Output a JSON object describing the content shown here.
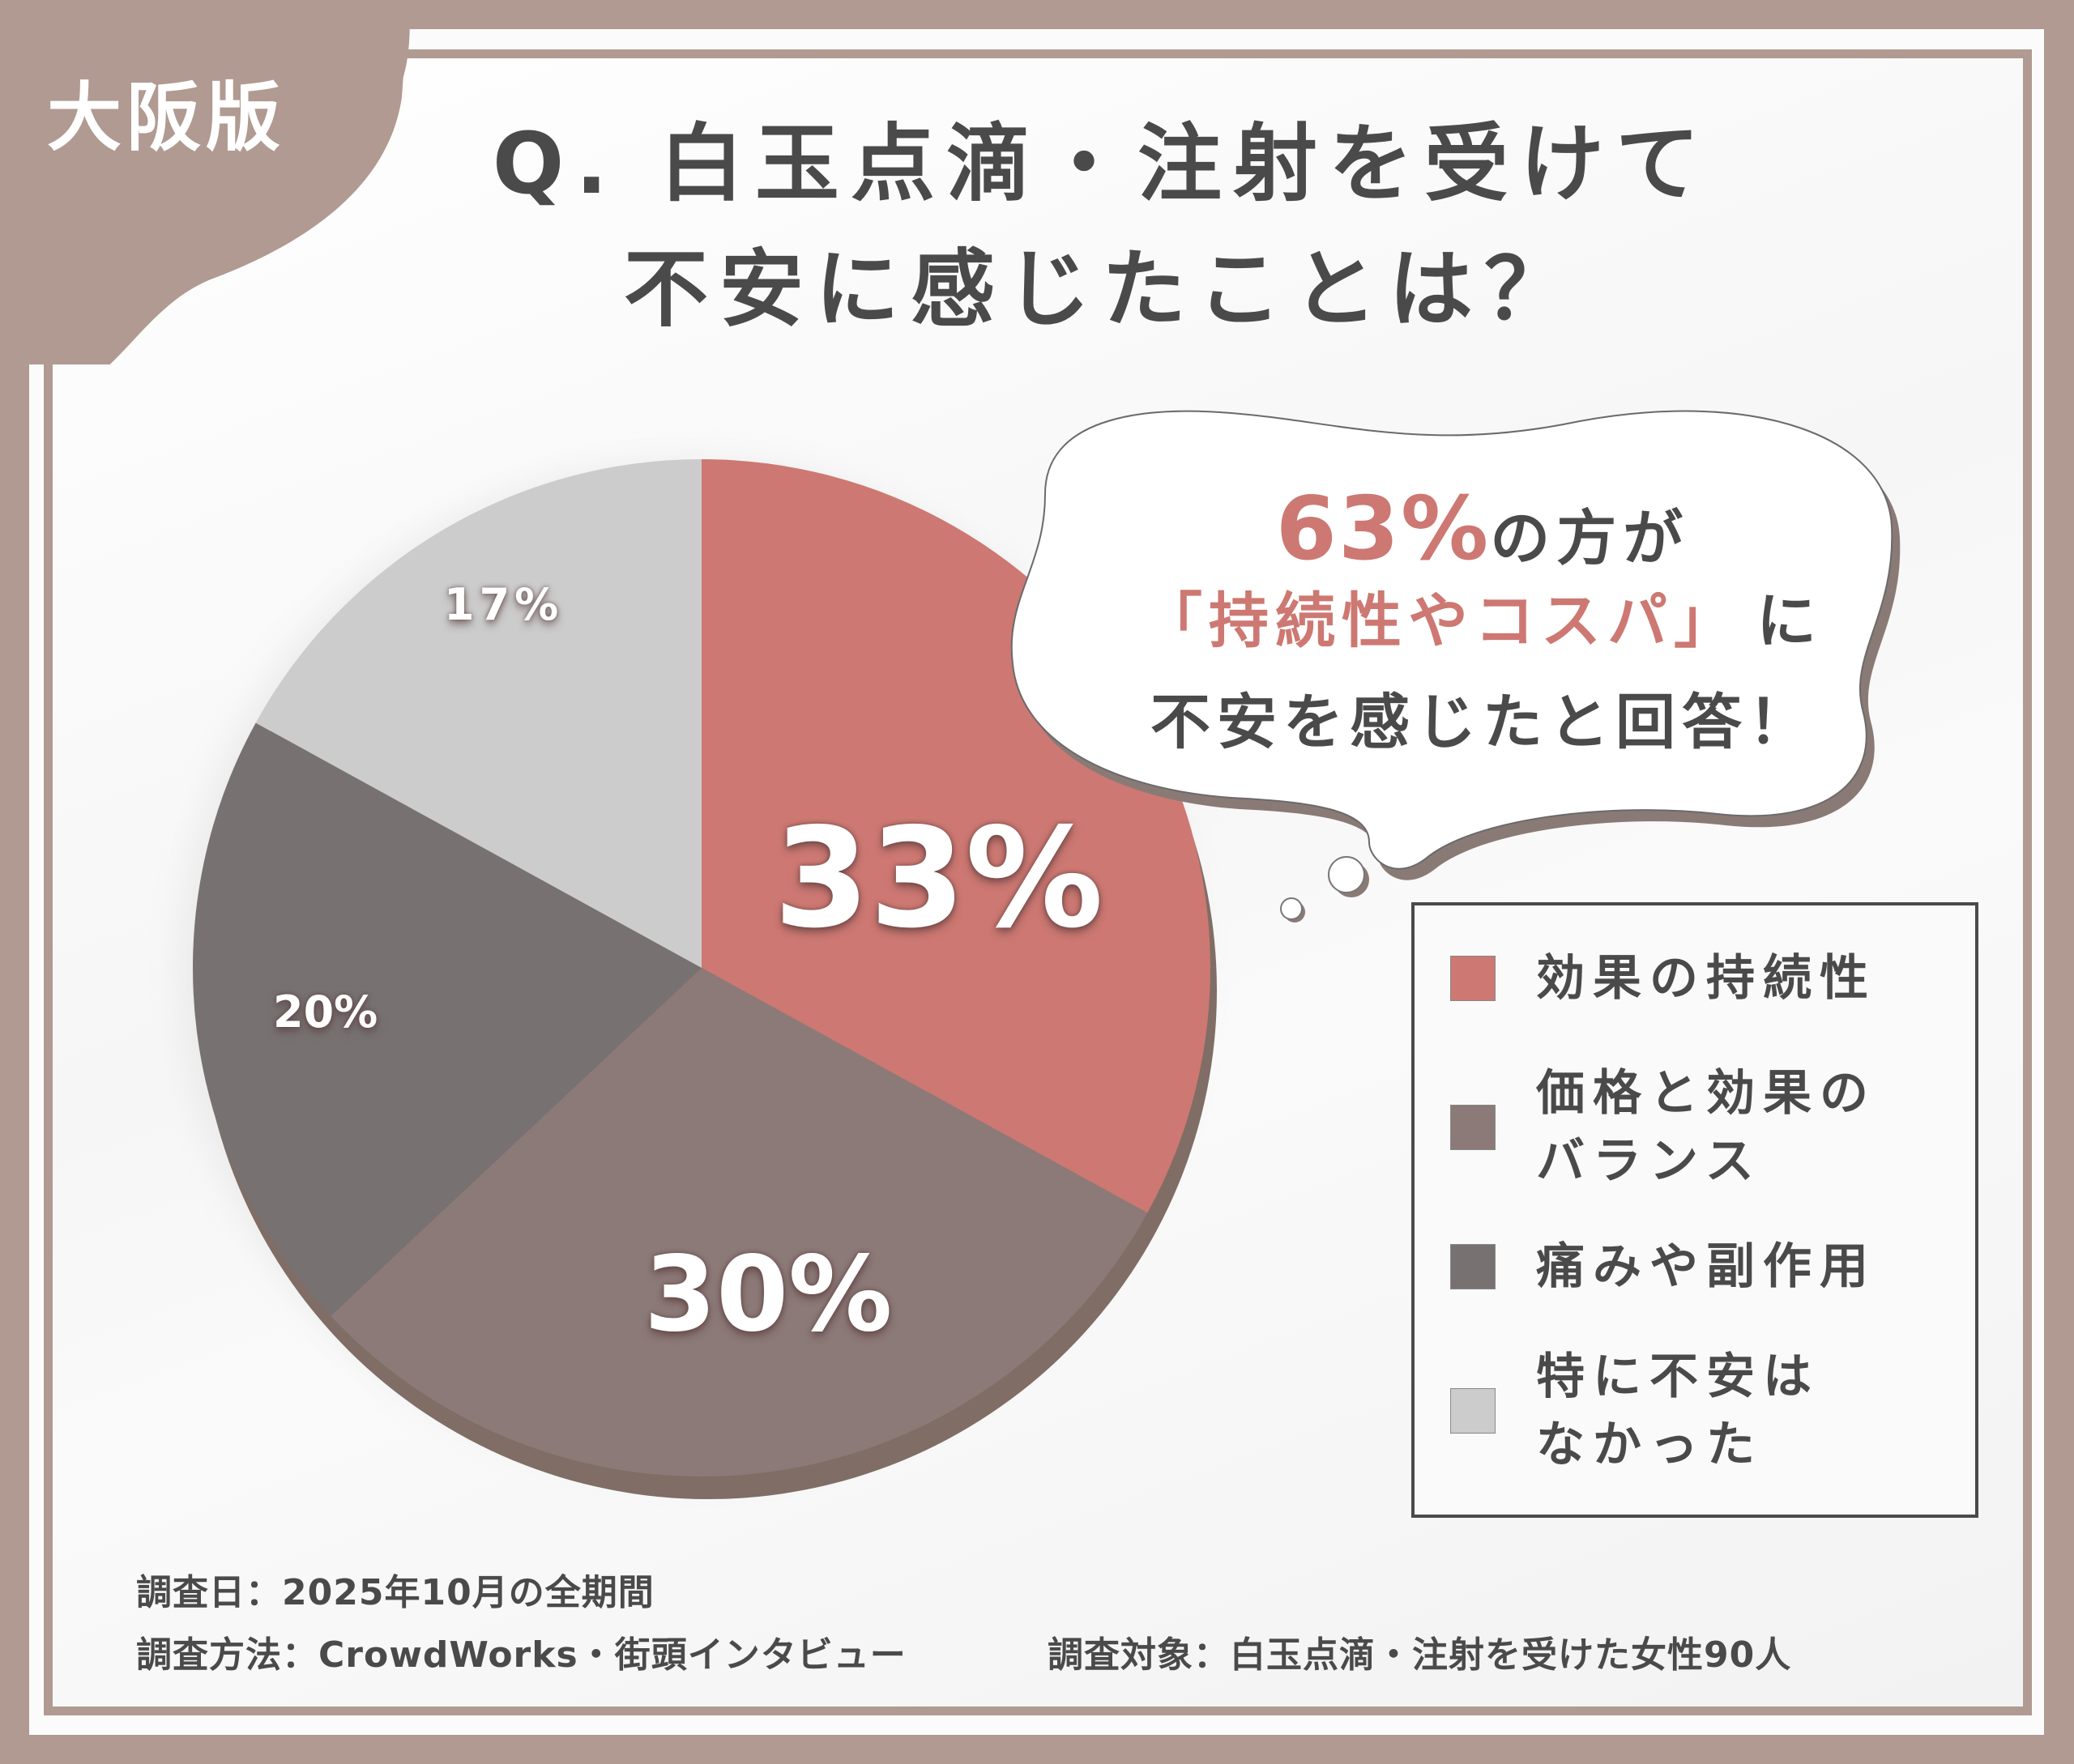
{
  "region_tag": "大阪版",
  "title": {
    "line1": "Q. 白玉点滴・注射を受けて",
    "line2": "不安に感じたことは？"
  },
  "bubble": {
    "highlight_value": "63%",
    "line1_rest": "の方が",
    "line2_quote": "「持続性やコスパ」",
    "line2_rest": "に",
    "line3": "不安を感じたと回答！"
  },
  "legend": {
    "items": [
      {
        "label": "効果の持続性",
        "color": "#cd7872"
      },
      {
        "label_line1": "価格と効果の",
        "label_line2": "バランス",
        "color": "#8c7a78"
      },
      {
        "label": "痛みや副作用",
        "color": "#777271"
      },
      {
        "label_line1": "特に不安は",
        "label_line2": "なかった",
        "color": "#cccccc"
      }
    ]
  },
  "pie_labels": {
    "s1": "33%",
    "s2": "30%",
    "s3": "20%",
    "s4": "17%"
  },
  "footer": {
    "date": "調査日：2025年10月の全期間",
    "method": "調査方法：CrowdWorks・街頭インタビュー",
    "target": "調査対象：白玉点滴・注射を受けた女性90人"
  },
  "colors": {
    "frame": "#b09a92",
    "accent": "#cd7872",
    "text": "#4a4a4a"
  },
  "chart_data": {
    "type": "pie",
    "title": "Q. 白玉点滴・注射を受けて不安に感じたことは？",
    "categories": [
      "効果の持続性",
      "価格と効果のバランス",
      "痛みや副作用",
      "特に不安はなかった"
    ],
    "values": [
      33,
      30,
      20,
      17
    ],
    "unit": "%",
    "colors": [
      "#cd7872",
      "#8c7a78",
      "#777271",
      "#cccccc"
    ],
    "legend_position": "right",
    "start_angle": "12 o'clock, clockwise",
    "annotation": "63%の方が「持続性やコスパ」に不安を感じたと回答！",
    "sample": "白玉点滴・注射を受けた女性90人"
  }
}
